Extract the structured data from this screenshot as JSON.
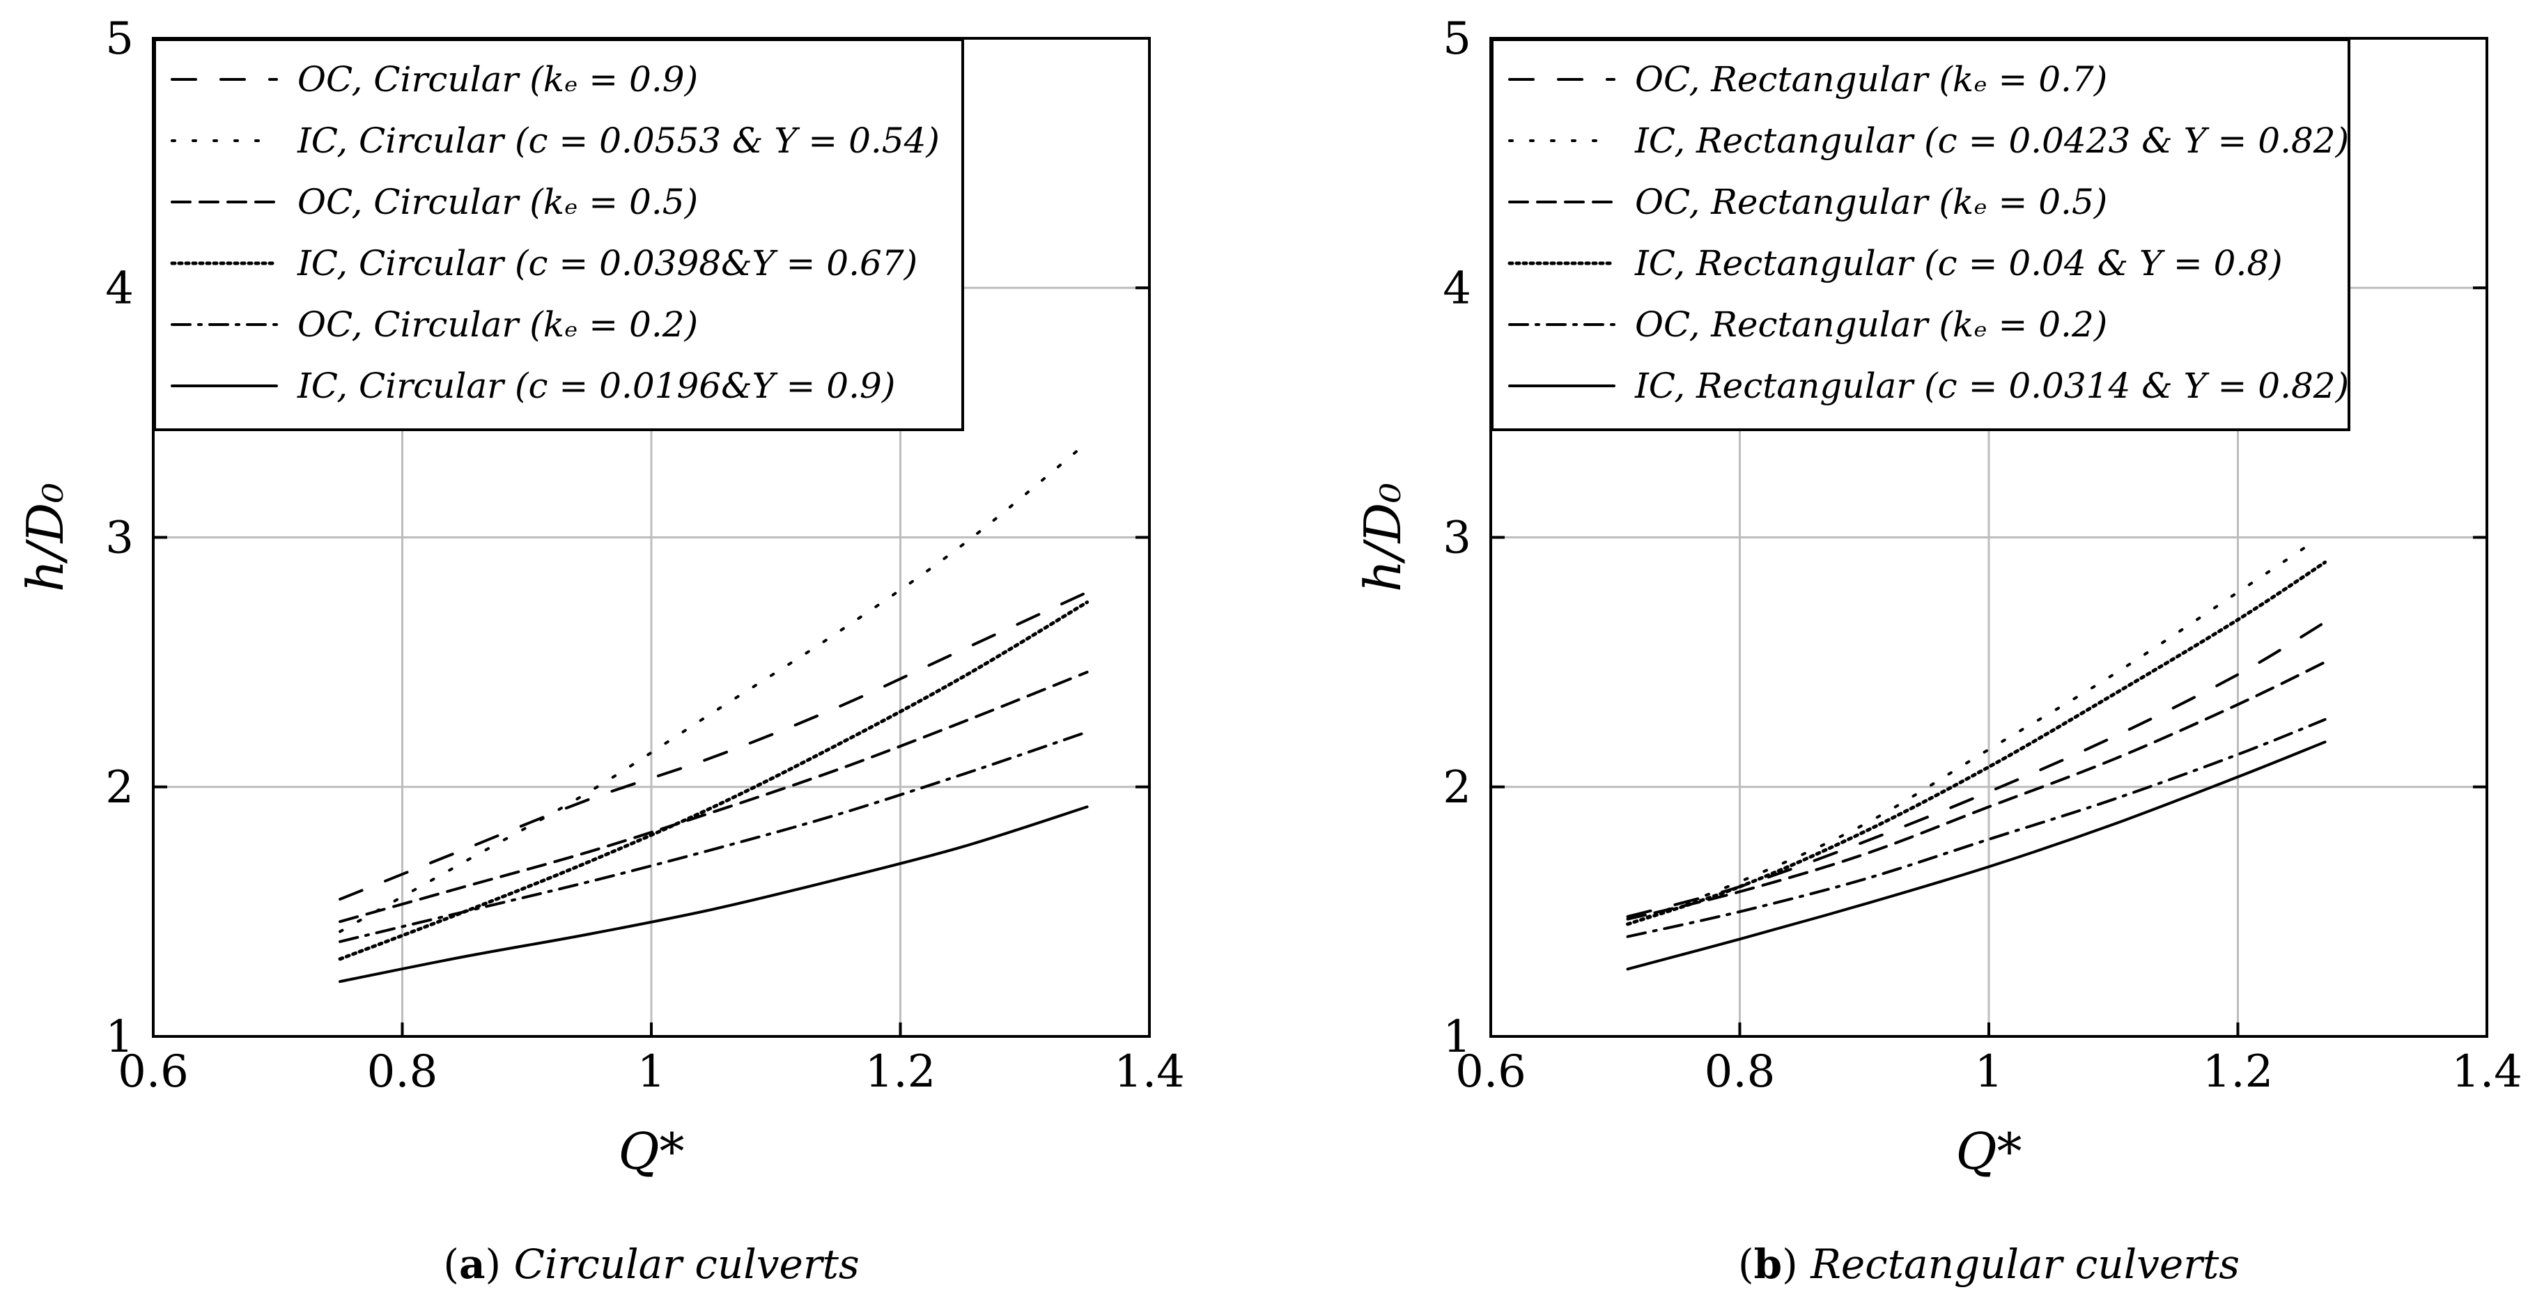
{
  "chart_data": [
    {
      "type": "line",
      "caption_letter": "a",
      "caption_text": "Circular culverts",
      "xlabel": "Q*",
      "ylabel": "h/D₀",
      "xlim": [
        0.6,
        1.4
      ],
      "ylim": [
        1,
        5
      ],
      "xticks": [
        0.6,
        0.8,
        1,
        1.2,
        1.4
      ],
      "xtick_labels": [
        "0.6",
        "0.8",
        "1",
        "1.2",
        "1.4"
      ],
      "yticks": [
        1,
        2,
        3,
        4,
        5
      ],
      "ytick_labels": [
        "1",
        "2",
        "3",
        "4",
        "5"
      ],
      "grid": true,
      "legend_position": "top-left",
      "series": [
        {
          "name": "OC, Circular (kₑ = 0.9)",
          "style": "loosely-dashed",
          "x": [
            0.75,
            0.85,
            0.95,
            1.05,
            1.15,
            1.25,
            1.35
          ],
          "y": [
            1.55,
            1.75,
            1.95,
            2.12,
            2.32,
            2.55,
            2.78
          ]
        },
        {
          "name": "IC, Circular (c = 0.0553 & Y = 0.54)",
          "style": "loosely-dotted",
          "x": [
            0.75,
            0.85,
            0.95,
            1.05,
            1.15,
            1.25,
            1.35
          ],
          "y": [
            1.42,
            1.7,
            1.98,
            2.3,
            2.62,
            2.97,
            3.38
          ]
        },
        {
          "name": "OC, Circular (kₑ = 0.5)",
          "style": "dashed",
          "x": [
            0.75,
            0.85,
            0.95,
            1.05,
            1.15,
            1.25,
            1.35
          ],
          "y": [
            1.46,
            1.6,
            1.74,
            1.9,
            2.07,
            2.26,
            2.46
          ]
        },
        {
          "name": "IC, Circular (c = 0.0398&Y = 0.67)",
          "style": "densely-dotted",
          "x": [
            0.75,
            0.85,
            0.95,
            1.05,
            1.15,
            1.25,
            1.35
          ],
          "y": [
            1.31,
            1.5,
            1.7,
            1.92,
            2.17,
            2.44,
            2.74
          ]
        },
        {
          "name": "OC, Circular (kₑ = 0.2)",
          "style": "dash-dot",
          "x": [
            0.75,
            0.85,
            0.95,
            1.05,
            1.15,
            1.25,
            1.35
          ],
          "y": [
            1.38,
            1.5,
            1.62,
            1.75,
            1.89,
            2.05,
            2.22
          ]
        },
        {
          "name": "IC, Circular (c = 0.0196&Y = 0.9)",
          "style": "solid",
          "x": [
            0.75,
            0.85,
            0.95,
            1.05,
            1.15,
            1.25,
            1.35
          ],
          "y": [
            1.22,
            1.32,
            1.41,
            1.51,
            1.63,
            1.76,
            1.92
          ]
        }
      ]
    },
    {
      "type": "line",
      "caption_letter": "b",
      "caption_text": "Rectangular culverts",
      "xlabel": "Q*",
      "ylabel": "h/D₀",
      "xlim": [
        0.6,
        1.4
      ],
      "ylim": [
        1,
        5
      ],
      "xticks": [
        0.6,
        0.8,
        1,
        1.2,
        1.4
      ],
      "xtick_labels": [
        "0.6",
        "0.8",
        "1",
        "1.2",
        "1.4"
      ],
      "yticks": [
        1,
        2,
        3,
        4,
        5
      ],
      "ytick_labels": [
        "1",
        "2",
        "3",
        "4",
        "5"
      ],
      "grid": true,
      "legend_position": "top-left",
      "series": [
        {
          "name": "OC, Rectangular (kₑ = 0.7)",
          "style": "loosely-dashed",
          "x": [
            0.71,
            0.8,
            0.9,
            1.0,
            1.1,
            1.2,
            1.27
          ],
          "y": [
            1.48,
            1.6,
            1.78,
            1.98,
            2.2,
            2.45,
            2.66
          ]
        },
        {
          "name": "IC, Rectangular (c = 0.0423 & Y = 0.82)",
          "style": "loosely-dotted",
          "x": [
            0.71,
            0.8,
            0.9,
            1.0,
            1.1,
            1.2,
            1.26
          ],
          "y": [
            1.45,
            1.62,
            1.85,
            2.15,
            2.45,
            2.78,
            2.98
          ]
        },
        {
          "name": "OC, Rectangular (kₑ = 0.5)",
          "style": "dashed",
          "x": [
            0.71,
            0.8,
            0.9,
            1.0,
            1.1,
            1.2,
            1.27
          ],
          "y": [
            1.47,
            1.58,
            1.73,
            1.92,
            2.11,
            2.33,
            2.5
          ]
        },
        {
          "name": "IC, Rectangular (c = 0.04 & Y = 0.8)",
          "style": "densely-dotted",
          "x": [
            0.71,
            0.8,
            0.9,
            1.0,
            1.1,
            1.2,
            1.27
          ],
          "y": [
            1.45,
            1.6,
            1.82,
            2.08,
            2.37,
            2.67,
            2.9
          ]
        },
        {
          "name": "OC, Rectangular (kₑ = 0.2)",
          "style": "dash-dot",
          "x": [
            0.71,
            0.8,
            0.9,
            1.0,
            1.1,
            1.2,
            1.27
          ],
          "y": [
            1.4,
            1.5,
            1.63,
            1.79,
            1.95,
            2.13,
            2.27
          ]
        },
        {
          "name": "IC, Rectangular (c = 0.0314 & Y = 0.82)",
          "style": "solid",
          "x": [
            0.71,
            0.8,
            0.9,
            1.0,
            1.1,
            1.2,
            1.27
          ],
          "y": [
            1.27,
            1.39,
            1.53,
            1.68,
            1.85,
            2.04,
            2.18
          ]
        }
      ]
    }
  ],
  "series_styles": {
    "loosely-dashed": "34 36",
    "loosely-dotted": "4 26",
    "dashed": "26 14",
    "densely-dotted": "4 6",
    "dash-dot": "26 12 4 12",
    "solid": ""
  }
}
